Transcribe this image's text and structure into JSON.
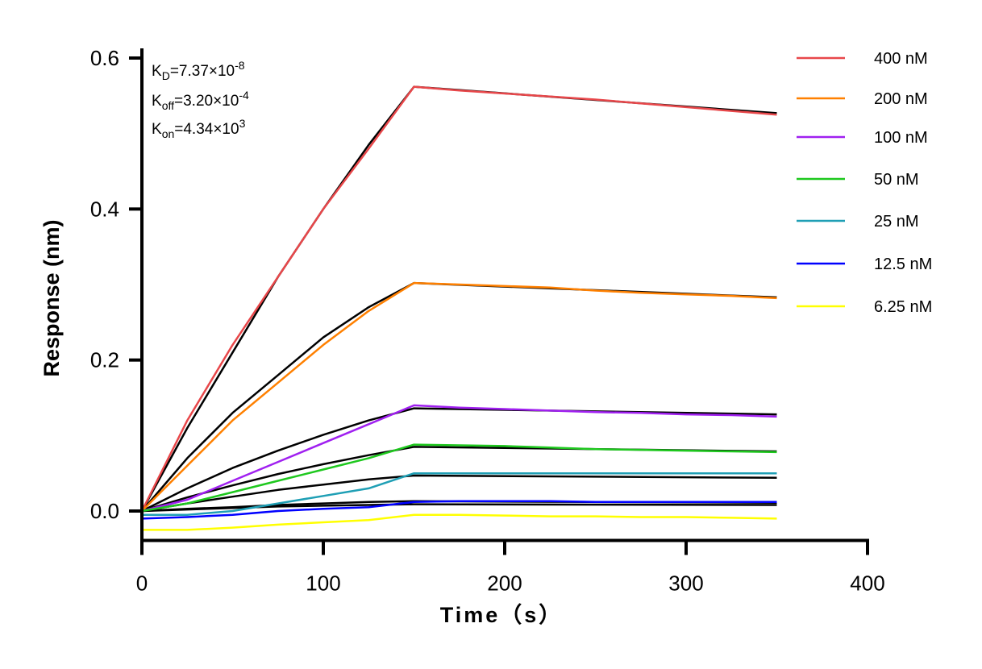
{
  "chart_data": {
    "type": "line",
    "xlabel": "Time（s）",
    "ylabel": "Response (nm)",
    "xlim": [
      0,
      400
    ],
    "ylim": [
      -0.039,
      0.6
    ],
    "xticks": [
      "0",
      "100",
      "200",
      "300",
      "400"
    ],
    "yticks": [
      "0.0",
      "0.2",
      "0.4",
      "0.6"
    ],
    "xtick_values": [
      0,
      100,
      200,
      300,
      400
    ],
    "ytick_values": [
      0.0,
      0.2,
      0.4,
      0.6
    ],
    "grid": false,
    "legend_position": "right",
    "annotations": {
      "kd": {
        "main": "K",
        "sub": "D",
        "value": "=7.37×10",
        "exp": "-8"
      },
      "koff": {
        "main": "K",
        "sub": "off",
        "value": "=3.20×10",
        "exp": "-4"
      },
      "kon": {
        "main": "K",
        "sub": "on",
        "value": "=4.34×10",
        "exp": "3"
      }
    },
    "x": [
      0,
      25,
      50,
      75,
      100,
      125,
      150,
      175,
      200,
      225,
      250,
      275,
      300,
      325,
      350
    ],
    "fit_x": [
      0,
      25,
      50,
      75,
      100,
      125,
      150,
      350
    ],
    "fit_color": "#000000",
    "series": [
      {
        "name": "400 nM",
        "color": "#e8474a",
        "values": [
          0,
          0.12,
          0.22,
          0.31,
          0.4,
          0.48,
          0.562,
          0.557,
          0.553,
          0.549,
          0.545,
          0.54,
          0.535,
          0.53,
          0.525
        ],
        "fit": [
          0,
          0.11,
          0.21,
          0.31,
          0.4,
          0.485,
          0.562,
          0.527
        ]
      },
      {
        "name": "200 nM",
        "color": "#ff8000",
        "values": [
          0,
          0.06,
          0.12,
          0.17,
          0.22,
          0.265,
          0.302,
          0.3,
          0.298,
          0.296,
          0.292,
          0.289,
          0.287,
          0.285,
          0.282
        ],
        "fit": [
          0,
          0.07,
          0.13,
          0.18,
          0.23,
          0.27,
          0.302,
          0.283
        ]
      },
      {
        "name": "100 nM",
        "color": "#a020f0",
        "values": [
          0,
          0.015,
          0.04,
          0.065,
          0.09,
          0.115,
          0.14,
          0.137,
          0.135,
          0.133,
          0.131,
          0.13,
          0.128,
          0.127,
          0.125
        ],
        "fit": [
          0,
          0.03,
          0.057,
          0.08,
          0.101,
          0.12,
          0.136,
          0.128
        ]
      },
      {
        "name": "50 nM",
        "color": "#1ec81e",
        "values": [
          0,
          0.01,
          0.025,
          0.04,
          0.055,
          0.07,
          0.088,
          0.087,
          0.086,
          0.084,
          0.082,
          0.081,
          0.08,
          0.079,
          0.078
        ],
        "fit": [
          0,
          0.018,
          0.034,
          0.049,
          0.062,
          0.074,
          0.085,
          0.079
        ]
      },
      {
        "name": "25 nM",
        "color": "#1f9fb5",
        "values": [
          -0.005,
          -0.005,
          0.0,
          0.01,
          0.02,
          0.03,
          0.05,
          0.05,
          0.05,
          0.05,
          0.05,
          0.05,
          0.05,
          0.05,
          0.05
        ],
        "fit": [
          0,
          0.01,
          0.019,
          0.028,
          0.035,
          0.042,
          0.047,
          0.044
        ]
      },
      {
        "name": "12.5 nM",
        "color": "#0000ff",
        "values": [
          -0.01,
          -0.008,
          -0.005,
          0,
          0.003,
          0.005,
          0.012,
          0.013,
          0.013,
          0.013,
          0.012,
          0.012,
          0.012,
          0.012,
          0.012
        ],
        "fit": [
          0,
          0.003,
          0.005,
          0.008,
          0.01,
          0.012,
          0.013,
          0.011
        ]
      },
      {
        "name": "6.25 nM",
        "color": "#ffff00",
        "values": [
          -0.025,
          -0.025,
          -0.022,
          -0.018,
          -0.015,
          -0.012,
          -0.005,
          -0.005,
          -0.006,
          -0.007,
          -0.007,
          -0.008,
          -0.008,
          -0.009,
          -0.01
        ],
        "fit": [
          0,
          0.002,
          0.004,
          0.006,
          0.007,
          0.008,
          0.009,
          0.008
        ]
      }
    ]
  }
}
